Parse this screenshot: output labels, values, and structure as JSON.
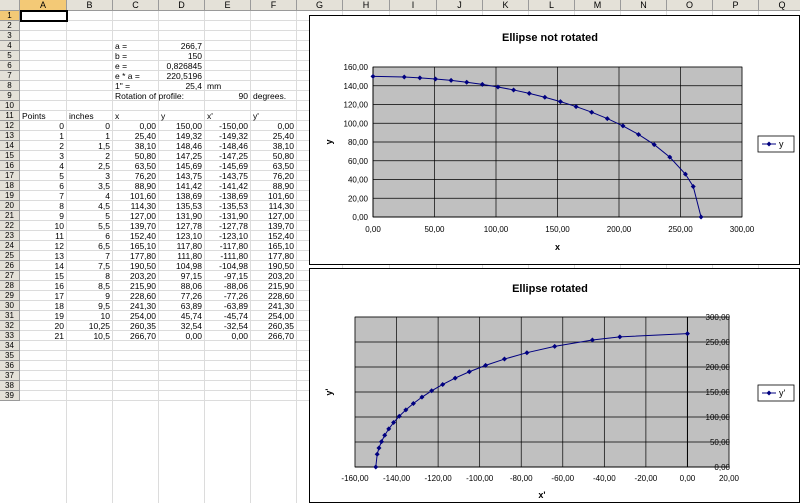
{
  "sheet": {
    "columns": [
      "A",
      "B",
      "C",
      "D",
      "E",
      "F",
      "G",
      "H",
      "I",
      "J",
      "K",
      "L",
      "M",
      "N",
      "O",
      "P",
      "Q"
    ],
    "row_count": 39,
    "selected_column": "A",
    "selected_row": 1
  },
  "params": [
    {
      "label": "a =",
      "value": "266,7",
      "unit": ""
    },
    {
      "label": "b =",
      "value": "150",
      "unit": ""
    },
    {
      "label": "e =",
      "value": "0,826845",
      "unit": ""
    },
    {
      "label": "e * a =",
      "value": "220,5196",
      "unit": ""
    },
    {
      "label": "1\" =",
      "value": "25,4",
      "unit": "mm"
    }
  ],
  "rotation": {
    "label": "Rotation of profile:",
    "value": "90",
    "unit": "degrees."
  },
  "table": {
    "headers": [
      "Points",
      "inches",
      "x",
      "y",
      "x'",
      "y'"
    ],
    "rows": [
      [
        "0",
        "0",
        "0,00",
        "150,00",
        "-150,00",
        "0,00"
      ],
      [
        "1",
        "1",
        "25,40",
        "149,32",
        "-149,32",
        "25,40"
      ],
      [
        "2",
        "1,5",
        "38,10",
        "148,46",
        "-148,46",
        "38,10"
      ],
      [
        "3",
        "2",
        "50,80",
        "147,25",
        "-147,25",
        "50,80"
      ],
      [
        "4",
        "2,5",
        "63,50",
        "145,69",
        "-145,69",
        "63,50"
      ],
      [
        "5",
        "3",
        "76,20",
        "143,75",
        "-143,75",
        "76,20"
      ],
      [
        "6",
        "3,5",
        "88,90",
        "141,42",
        "-141,42",
        "88,90"
      ],
      [
        "7",
        "4",
        "101,60",
        "138,69",
        "-138,69",
        "101,60"
      ],
      [
        "8",
        "4,5",
        "114,30",
        "135,53",
        "-135,53",
        "114,30"
      ],
      [
        "9",
        "5",
        "127,00",
        "131,90",
        "-131,90",
        "127,00"
      ],
      [
        "10",
        "5,5",
        "139,70",
        "127,78",
        "-127,78",
        "139,70"
      ],
      [
        "11",
        "6",
        "152,40",
        "123,10",
        "-123,10",
        "152,40"
      ],
      [
        "12",
        "6,5",
        "165,10",
        "117,80",
        "-117,80",
        "165,10"
      ],
      [
        "13",
        "7",
        "177,80",
        "111,80",
        "-111,80",
        "177,80"
      ],
      [
        "14",
        "7,5",
        "190,50",
        "104,98",
        "-104,98",
        "190,50"
      ],
      [
        "15",
        "8",
        "203,20",
        "97,15",
        "-97,15",
        "203,20"
      ],
      [
        "16",
        "8,5",
        "215,90",
        "88,06",
        "-88,06",
        "215,90"
      ],
      [
        "17",
        "9",
        "228,60",
        "77,26",
        "-77,26",
        "228,60"
      ],
      [
        "18",
        "9,5",
        "241,30",
        "63,89",
        "-63,89",
        "241,30"
      ],
      [
        "19",
        "10",
        "254,00",
        "45,74",
        "-45,74",
        "254,00"
      ],
      [
        "20",
        "10,25",
        "260,35",
        "32,54",
        "-32,54",
        "260,35"
      ],
      [
        "21",
        "10,5",
        "266,70",
        "0,00",
        "0,00",
        "266,70"
      ]
    ]
  },
  "chart_data": [
    {
      "type": "line",
      "title": "Ellipse not rotated",
      "xlabel": "x",
      "ylabel": "y",
      "xlim": [
        0,
        300
      ],
      "ylim": [
        0,
        160
      ],
      "xticks": [
        "0,00",
        "50,00",
        "100,00",
        "150,00",
        "200,00",
        "250,00",
        "300,00"
      ],
      "yticks": [
        "0,00",
        "20,00",
        "40,00",
        "60,00",
        "80,00",
        "100,00",
        "120,00",
        "140,00",
        "160,00"
      ],
      "legend": "right",
      "series": [
        {
          "name": "y",
          "color": "#000080",
          "x": [
            0,
            25.4,
            38.1,
            50.8,
            63.5,
            76.2,
            88.9,
            101.6,
            114.3,
            127,
            139.7,
            152.4,
            165.1,
            177.8,
            190.5,
            203.2,
            215.9,
            228.6,
            241.3,
            254,
            260.35,
            266.7
          ],
          "y": [
            150,
            149.32,
            148.46,
            147.25,
            145.69,
            143.75,
            141.42,
            138.69,
            135.53,
            131.9,
            127.78,
            123.1,
            117.8,
            111.8,
            104.98,
            97.15,
            88.06,
            77.26,
            63.89,
            45.74,
            32.54,
            0
          ]
        }
      ]
    },
    {
      "type": "line",
      "title": "Ellipse rotated",
      "xlabel": "x'",
      "ylabel": "y'",
      "xlim": [
        -160,
        20
      ],
      "ylim": [
        0,
        300
      ],
      "xticks": [
        "-160,00",
        "-140,00",
        "-120,00",
        "-100,00",
        "-80,00",
        "-60,00",
        "-40,00",
        "-20,00",
        "0,00",
        "20,00"
      ],
      "yticks": [
        "0,00",
        "50,00",
        "100,00",
        "150,00",
        "200,00",
        "250,00",
        "300,00"
      ],
      "legend": "right",
      "series": [
        {
          "name": "y'",
          "color": "#000080",
          "x": [
            -150,
            -149.32,
            -148.46,
            -147.25,
            -145.69,
            -143.75,
            -141.42,
            -138.69,
            -135.53,
            -131.9,
            -127.78,
            -123.1,
            -117.8,
            -111.8,
            -104.98,
            -97.15,
            -88.06,
            -77.26,
            -63.89,
            -45.74,
            -32.54,
            0
          ],
          "y": [
            0,
            25.4,
            38.1,
            50.8,
            63.5,
            76.2,
            88.9,
            101.6,
            114.3,
            127,
            139.7,
            152.4,
            165.1,
            177.8,
            190.5,
            203.2,
            215.9,
            228.6,
            241.3,
            254,
            260.35,
            266.7
          ]
        }
      ]
    }
  ]
}
